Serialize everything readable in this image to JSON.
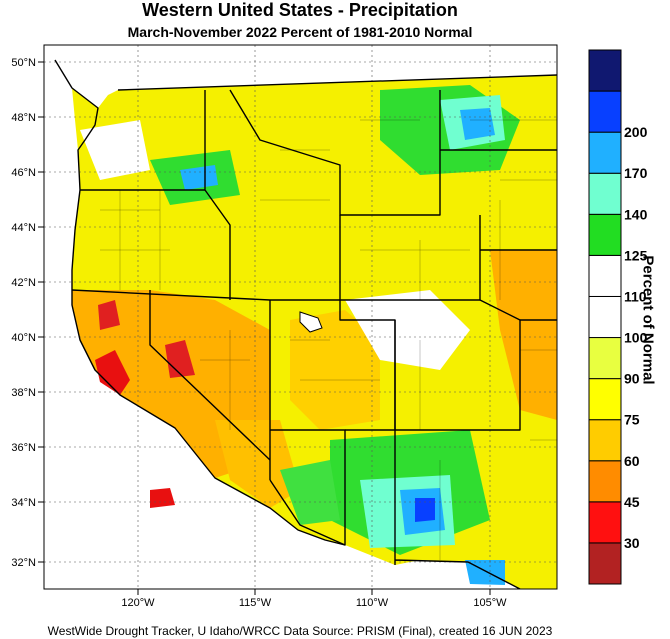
{
  "title": "Western United States - Precipitation",
  "subtitle": "March-November 2022  Percent of 1981-2010 Normal",
  "footer": "WestWide Drought Tracker, U Idaho/WRCC Data Source: PRISM (Final), created 16 JUN 2023",
  "legend": {
    "title": "Percent of Normal",
    "bins": [
      {
        "color": "#b22222"
      },
      {
        "color": "#ff1010"
      },
      {
        "color": "#ff8c00"
      },
      {
        "color": "#ffcc00"
      },
      {
        "color": "#ffff00"
      },
      {
        "color": "#e8ff40"
      },
      {
        "color": "#ffffff"
      },
      {
        "color": "#ffffff"
      },
      {
        "color": "#22dd22"
      },
      {
        "color": "#70ffd0"
      },
      {
        "color": "#20b0ff"
      },
      {
        "color": "#0840ff"
      },
      {
        "color": "#101870"
      }
    ],
    "labels": [
      "30",
      "45",
      "60",
      "75",
      "90",
      "100",
      "110",
      "125",
      "140",
      "170",
      "200"
    ]
  },
  "lat_labels": [
    "50°N",
    "48°N",
    "46°N",
    "44°N",
    "42°N",
    "40°N",
    "38°N",
    "36°N",
    "34°N",
    "32°N"
  ],
  "lon_labels": [
    "120°W",
    "115°W",
    "110°W",
    "105°W"
  ]
}
